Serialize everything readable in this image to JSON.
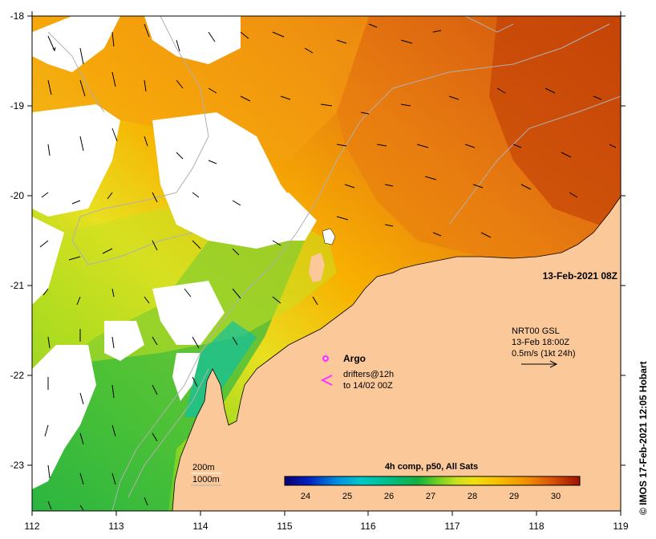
{
  "map": {
    "timestamp": "13-Feb-2021 08Z",
    "credit": "© IMOS 17-Feb-2021 12:05 Hobart",
    "lon_ticks": [
      "112",
      "113",
      "114",
      "115",
      "116",
      "117",
      "118",
      "119"
    ],
    "lat_ticks": [
      "-18",
      "-19",
      "-20",
      "-21",
      "-22",
      "-23"
    ],
    "lon_range": [
      112,
      119
    ],
    "lat_range": [
      -23.5,
      -18
    ],
    "current_legend": {
      "line1": "NRT00 GSL",
      "line2": "13-Feb 18:00Z",
      "line3": "0.5m/s (1kt 24h)"
    },
    "marker_legend": {
      "argo_label": "Argo",
      "drifters_label_1": "drifters@12h",
      "drifters_label_2": "to 14/02 00Z",
      "argo_color": "#ff33ff",
      "drifters_color": "#ff33ff"
    },
    "bathy_legend": {
      "line1": "200m",
      "line2": "1000m"
    },
    "colorbar": {
      "title": "4h comp, p50, All Sats",
      "ticks": [
        "24",
        "25",
        "26",
        "27",
        "28",
        "29",
        "30"
      ],
      "range": [
        23.4,
        30.6
      ]
    },
    "colors": {
      "land": "#fbc89a",
      "cloud": "#ffffff"
    }
  }
}
